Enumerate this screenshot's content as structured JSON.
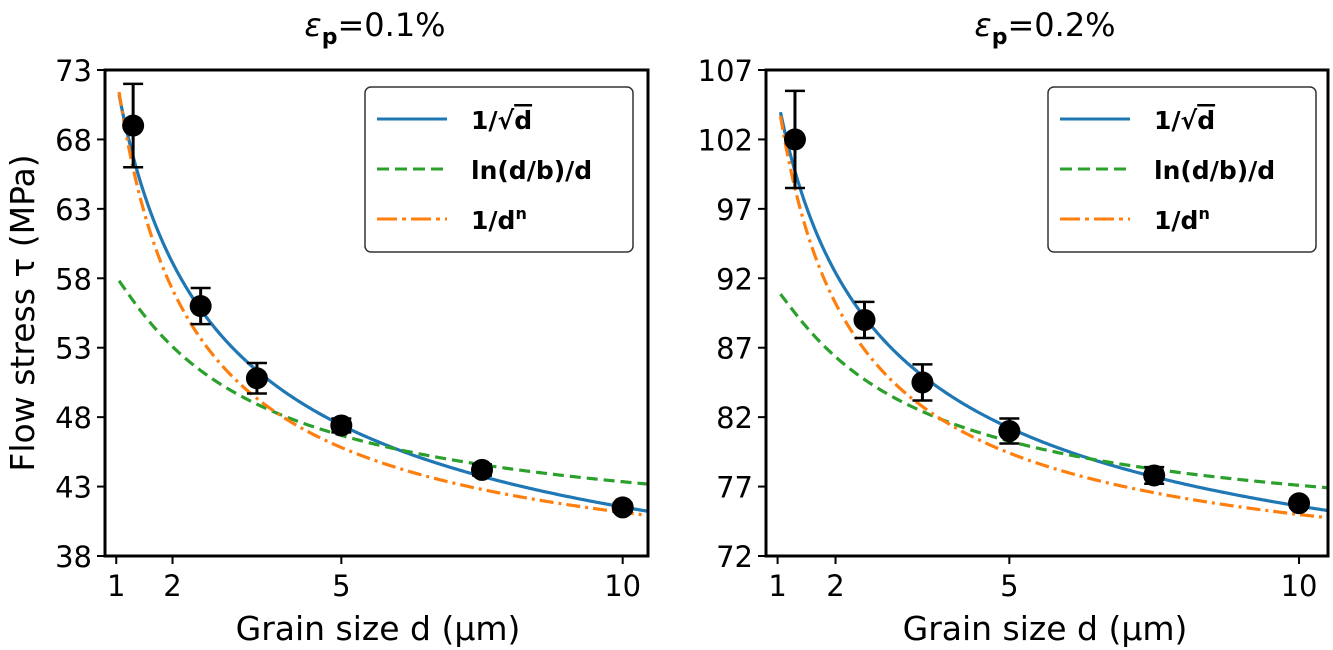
{
  "chart_data": [
    {
      "type": "scatter",
      "title": "ε_p=0.1%",
      "title_main": "ε",
      "title_sub": "p",
      "title_rest": "=0.1%",
      "xlabel": "Grain size d (μm)",
      "ylabel": "Flow stress τ (MPa)",
      "xlim": [
        0.8,
        10.45
      ],
      "ylim": [
        38,
        73
      ],
      "xticks": [
        1,
        2,
        5,
        10
      ],
      "xtick_labels": [
        "1",
        "2",
        "5",
        "10"
      ],
      "yticks": [
        38,
        43,
        48,
        53,
        58,
        63,
        68,
        73
      ],
      "ytick_labels": [
        "38",
        "43",
        "48",
        "53",
        "58",
        "63",
        "68",
        "73"
      ],
      "grid": false,
      "legend_position": "top-right",
      "points": {
        "name": "data",
        "x": [
          1.3,
          2.5,
          3.5,
          5.0,
          7.5,
          10.0
        ],
        "y": [
          69.0,
          56.0,
          50.8,
          47.4,
          44.2,
          41.5
        ],
        "yerr": [
          3.0,
          1.3,
          1.1,
          0.5,
          0.4,
          0.3
        ]
      },
      "series": [
        {
          "name": "1/√d",
          "style": "solid",
          "color": "#1f77b4",
          "model": "a + k/sqrt(d)",
          "params": {
            "a": 27.3,
            "k": 45.0
          }
        },
        {
          "name": "ln(d/b)/d",
          "style": "dashed",
          "color": "#2ca02c",
          "model": "a + k*ln(d/b)/d",
          "params": {
            "a": 38.0,
            "k": 14.5,
            "b": 0.25
          }
        },
        {
          "name": "1/dⁿ",
          "style": "dashdot",
          "color": "#ff7f0e",
          "model": "a + k/d^n",
          "params": {
            "a": 34.3,
            "k": 38.5,
            "n": 0.75
          }
        }
      ]
    },
    {
      "type": "scatter",
      "title": "ε_p=0.2%",
      "title_main": "ε",
      "title_sub": "p",
      "title_rest": "=0.2%",
      "xlabel": "Grain size d (μm)",
      "ylabel": "",
      "xlim": [
        0.8,
        10.5
      ],
      "ylim": [
        72,
        107
      ],
      "xticks": [
        1,
        2,
        5,
        10
      ],
      "xtick_labels": [
        "1",
        "2",
        "5",
        "10"
      ],
      "yticks": [
        72,
        77,
        82,
        87,
        92,
        97,
        102,
        107
      ],
      "ytick_labels": [
        "72",
        "77",
        "82",
        "87",
        "92",
        "97",
        "102",
        "107"
      ],
      "grid": false,
      "legend_position": "top-right",
      "points": {
        "name": "data",
        "x": [
          1.3,
          2.5,
          3.5,
          5.0,
          7.5,
          10.0
        ],
        "y": [
          102.0,
          89.0,
          84.5,
          81.0,
          77.8,
          75.8
        ],
        "yerr": [
          3.5,
          1.3,
          1.3,
          0.9,
          0.6,
          0.3
        ]
      },
      "series": [
        {
          "name": "1/√d",
          "style": "solid",
          "color": "#1f77b4",
          "model": "a + k/sqrt(d)",
          "params": {
            "a": 62.0,
            "k": 43.0
          }
        },
        {
          "name": "ln(d/b)/d",
          "style": "dashed",
          "color": "#2ca02c",
          "model": "a + k*ln(d/b)/d",
          "params": {
            "a": 72.0,
            "k": 13.8,
            "b": 0.25
          }
        },
        {
          "name": "1/dⁿ",
          "style": "dashdot",
          "color": "#ff7f0e",
          "model": "a + k/d^n",
          "params": {
            "a": 68.5,
            "k": 36.5,
            "n": 0.75
          }
        }
      ]
    }
  ],
  "legend": {
    "items": [
      {
        "label_pre": "1/√",
        "label_main": "d",
        "label_sup": ""
      },
      {
        "label_pre": "",
        "label_main": "ln(d/b)/d",
        "label_sup": ""
      },
      {
        "label_pre": "1/",
        "label_main": "d",
        "label_sup": "n"
      }
    ]
  }
}
